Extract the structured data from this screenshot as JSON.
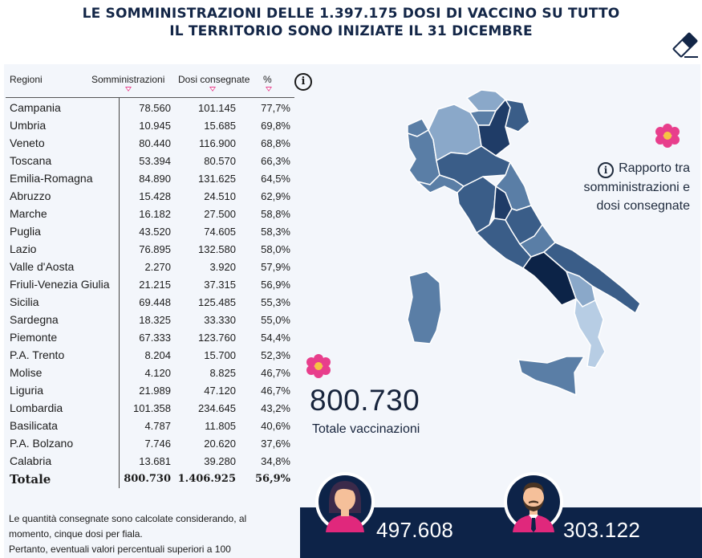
{
  "title": {
    "line1": "LE SOMMINISTRAZIONI DELLE 1.397.175 DOSI DI VACCINO SU TUTTO",
    "line2": "IL TERRITORIO SONO INIZIATE IL 31 DICEMBRE"
  },
  "table": {
    "headers": {
      "region": "Regioni",
      "administrations": "Somministrazioni",
      "delivered": "Dosi consegnate",
      "percent": "%"
    },
    "rows": [
      {
        "region": "Campania",
        "administrations": "78.560",
        "delivered": "101.145",
        "percent": "77,7%"
      },
      {
        "region": "Umbria",
        "administrations": "10.945",
        "delivered": "15.685",
        "percent": "69,8%"
      },
      {
        "region": "Veneto",
        "administrations": "80.440",
        "delivered": "116.900",
        "percent": "68,8%"
      },
      {
        "region": "Toscana",
        "administrations": "53.394",
        "delivered": "80.570",
        "percent": "66,3%"
      },
      {
        "region": "Emilia-Romagna",
        "administrations": "84.890",
        "delivered": "131.625",
        "percent": "64,5%"
      },
      {
        "region": "Abruzzo",
        "administrations": "15.428",
        "delivered": "24.510",
        "percent": "62,9%"
      },
      {
        "region": "Marche",
        "administrations": "16.182",
        "delivered": "27.500",
        "percent": "58,8%"
      },
      {
        "region": "Puglia",
        "administrations": "43.520",
        "delivered": "74.605",
        "percent": "58,3%"
      },
      {
        "region": "Lazio",
        "administrations": "76.895",
        "delivered": "132.580",
        "percent": "58,0%"
      },
      {
        "region": "Valle d'Aosta",
        "administrations": "2.270",
        "delivered": "3.920",
        "percent": "57,9%"
      },
      {
        "region": "Friuli-Venezia Giulia",
        "administrations": "21.215",
        "delivered": "37.315",
        "percent": "56,9%"
      },
      {
        "region": "Sicilia",
        "administrations": "69.448",
        "delivered": "125.485",
        "percent": "55,3%"
      },
      {
        "region": "Sardegna",
        "administrations": "18.325",
        "delivered": "33.330",
        "percent": "55,0%"
      },
      {
        "region": "Piemonte",
        "administrations": "67.333",
        "delivered": "123.760",
        "percent": "54,4%"
      },
      {
        "region": "P.A. Trento",
        "administrations": "8.204",
        "delivered": "15.700",
        "percent": "52,3%"
      },
      {
        "region": "Molise",
        "administrations": "4.120",
        "delivered": "8.825",
        "percent": "46,7%"
      },
      {
        "region": "Liguria",
        "administrations": "21.989",
        "delivered": "47.120",
        "percent": "46,7%"
      },
      {
        "region": "Lombardia",
        "administrations": "101.358",
        "delivered": "234.645",
        "percent": "43,2%"
      },
      {
        "region": "Basilicata",
        "administrations": "4.787",
        "delivered": "11.805",
        "percent": "40,6%"
      },
      {
        "region": "P.A. Bolzano",
        "administrations": "7.746",
        "delivered": "20.620",
        "percent": "37,6%"
      },
      {
        "region": "Calabria",
        "administrations": "13.681",
        "delivered": "39.280",
        "percent": "34,8%"
      }
    ],
    "total": {
      "region": "Totale",
      "administrations": "800.730",
      "delivered": "1.406.925",
      "percent": "56,9%"
    }
  },
  "footnote": {
    "line1": "Le quantità consegnate sono calcolate considerando, al",
    "line2": "momento, cinque dosi per fiala.",
    "line3": "Pertanto, eventuali valori percentuali superiori a 100"
  },
  "map_legend": {
    "line1": "Rapporto tra",
    "line2": "somministrazioni e",
    "line3": "dosi consegnate"
  },
  "summary": {
    "total_value": "800.730",
    "total_label": "Totale vaccinazioni"
  },
  "gender": {
    "female_count": "497.608",
    "male_count": "303.122"
  },
  "icons": {
    "info": "info-icon",
    "eraser": "eraser-icon",
    "flower": "flower-icon",
    "sort": "sort-caret-icon",
    "female": "female-avatar-icon",
    "male": "male-avatar-icon"
  },
  "colors": {
    "title": "#132647",
    "panel_background": "#f3f6fb",
    "gender_bar": "#0d2348",
    "map_shades": [
      "#0c2347",
      "#1f3c67",
      "#3a5d88",
      "#5a7ea6",
      "#8aa8c9",
      "#b7cde4"
    ],
    "flower": "#e83e8c",
    "avatar_shirt": "#e0287c"
  }
}
